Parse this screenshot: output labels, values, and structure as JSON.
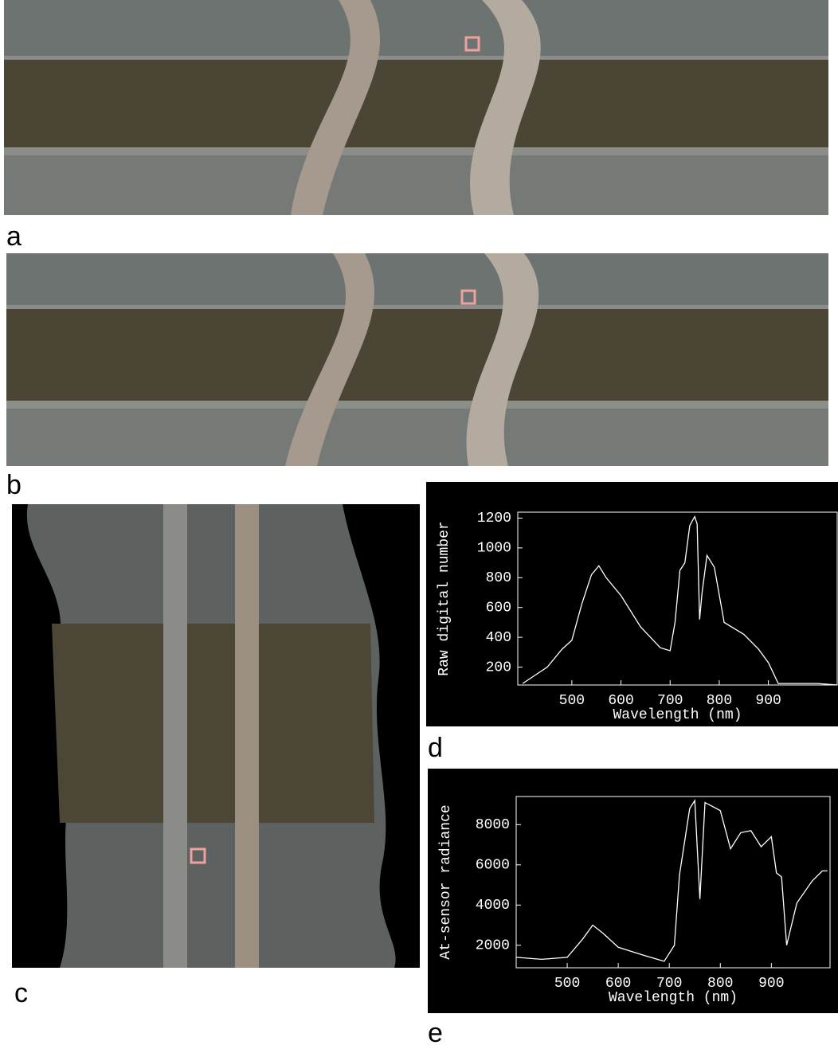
{
  "labels": [
    "a",
    "b",
    "c",
    "d",
    "e"
  ],
  "chart_data": [
    {
      "type": "line",
      "xlabel": "Wavelength (nm)",
      "ylabel": "Raw digital number",
      "color": "#ffffff",
      "x": [
        400,
        450,
        480,
        500,
        520,
        540,
        555,
        570,
        600,
        640,
        680,
        700,
        710,
        720,
        730,
        740,
        750,
        755,
        760,
        765,
        775,
        790,
        810,
        850,
        880,
        900,
        920,
        950,
        1000,
        1040
      ],
      "values": [
        90,
        200,
        320,
        380,
        620,
        820,
        880,
        800,
        680,
        470,
        330,
        310,
        500,
        850,
        900,
        1150,
        1210,
        1160,
        520,
        700,
        950,
        870,
        500,
        420,
        320,
        230,
        90,
        90,
        90,
        80
      ],
      "xlim": [
        390,
        1040
      ],
      "ylim": [
        80,
        1240
      ],
      "xticks": [
        500,
        600,
        700,
        800,
        900
      ],
      "yticks": [
        200,
        400,
        600,
        800,
        1000,
        1200
      ]
    },
    {
      "type": "line",
      "xlabel": "Wavelength (nm)",
      "ylabel": "At-sensor radiance",
      "color": "#ffffff",
      "x": [
        400,
        450,
        500,
        530,
        550,
        570,
        600,
        650,
        690,
        710,
        720,
        740,
        750,
        760,
        770,
        800,
        820,
        840,
        860,
        880,
        900,
        910,
        920,
        930,
        950,
        980,
        1000,
        1010
      ],
      "values": [
        1400,
        1300,
        1400,
        2300,
        3000,
        2600,
        1900,
        1500,
        1200,
        2000,
        5500,
        8800,
        9200,
        4300,
        9100,
        8700,
        6800,
        7600,
        7700,
        6900,
        7400,
        5600,
        5400,
        2000,
        4100,
        5200,
        5700,
        5700
      ],
      "xlim": [
        400,
        1015
      ],
      "ylim": [
        880,
        9400
      ],
      "xticks": [
        500,
        600,
        700,
        800,
        900
      ],
      "yticks": [
        2000,
        4000,
        6000,
        8000
      ]
    }
  ]
}
